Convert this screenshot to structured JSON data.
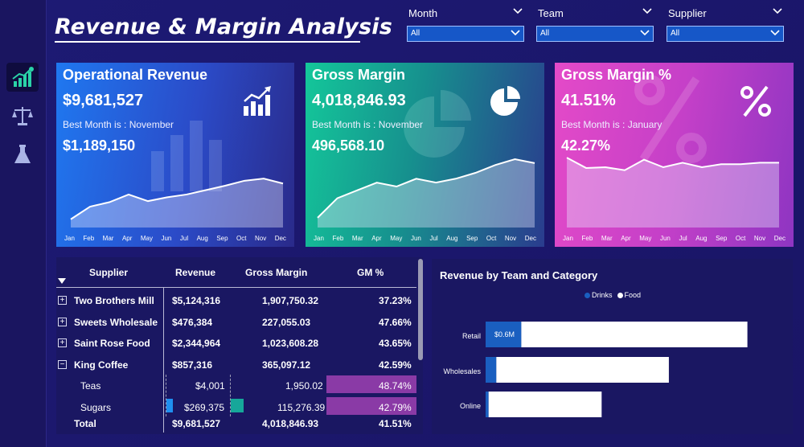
{
  "title": "Revenue & Margin Analysis",
  "slicers": [
    {
      "label": "Month",
      "value": "All"
    },
    {
      "label": "Team",
      "value": "All"
    },
    {
      "label": "Supplier",
      "value": "All"
    }
  ],
  "nav": [
    {
      "icon": "growth-chart-icon",
      "active": true
    },
    {
      "icon": "balance-scale-icon",
      "active": false
    },
    {
      "icon": "flask-icon",
      "active": false
    }
  ],
  "months": [
    "Jan",
    "Feb",
    "Mar",
    "Apr",
    "May",
    "Jun",
    "Jul",
    "Aug",
    "Sep",
    "Oct",
    "Nov",
    "Dec"
  ],
  "kpis": {
    "revenue": {
      "title": "Operational Revenue",
      "value": "$9,681,527",
      "best_label": "Best Month is : November",
      "best_value": "$1,189,150",
      "icon": "bar-chart-growth-icon"
    },
    "margin": {
      "title": "Gross Margin",
      "value": "4,018,846.93",
      "best_label": "Best Month is : November",
      "best_value": "496,568.10",
      "icon": "pie-chart-icon"
    },
    "margin_pct": {
      "title": "Gross Margin %",
      "value": "41.51%",
      "best_label": "Best Month is : January",
      "best_value": "42.27%",
      "icon": "percent-icon"
    }
  },
  "table": {
    "headers": [
      "Supplier",
      "Revenue",
      "Gross Margin",
      "GM %"
    ],
    "rows": [
      {
        "supplier": "Two Brothers Mill",
        "revenue": "$5,124,316",
        "margin": "1,907,750.32",
        "gm": "37.23%",
        "expander": "+"
      },
      {
        "supplier": "Sweets Wholesale",
        "revenue": "$476,384",
        "margin": "227,055.03",
        "gm": "47.66%",
        "expander": "+"
      },
      {
        "supplier": "Saint Rose Food",
        "revenue": "$2,344,964",
        "margin": "1,023,608.28",
        "gm": "43.65%",
        "expander": "+"
      },
      {
        "supplier": "King Coffee",
        "revenue": "$857,316",
        "margin": "365,097.12",
        "gm": "42.59%",
        "expander": "−"
      }
    ],
    "subrows": [
      {
        "supplier": "Teas",
        "revenue": "$4,001",
        "margin": "1,950.02",
        "gm": "48.74%"
      },
      {
        "supplier": "Sugars",
        "revenue": "$269,375",
        "margin": "115,276.39",
        "gm": "42.79%"
      }
    ],
    "total": {
      "supplier": "Total",
      "revenue": "$9,681,527",
      "margin": "4,018,846.93",
      "gm": "41.51%"
    }
  },
  "chart_data": [
    {
      "type": "area",
      "categories": [
        "Jan",
        "Feb",
        "Mar",
        "Apr",
        "May",
        "Jun",
        "Jul",
        "Aug",
        "Sep",
        "Oct",
        "Nov",
        "Dec"
      ],
      "series": [
        {
          "values": [
            0.45,
            0.68,
            0.76,
            0.9,
            0.78,
            0.85,
            0.9,
            0.98,
            1.06,
            1.15,
            1.19,
            1.1
          ]
        }
      ]
    },
    {
      "type": "area",
      "categories": [
        "Jan",
        "Feb",
        "Mar",
        "Apr",
        "May",
        "Jun",
        "Jul",
        "Aug",
        "Sep",
        "Oct",
        "Nov",
        "Dec"
      ],
      "series": [
        {
          "values": [
            0.2,
            0.3,
            0.34,
            0.38,
            0.36,
            0.4,
            0.38,
            0.4,
            0.43,
            0.47,
            0.5,
            0.48
          ]
        }
      ]
    },
    {
      "type": "area",
      "categories": [
        "Jan",
        "Feb",
        "Mar",
        "Apr",
        "May",
        "Jun",
        "Jul",
        "Aug",
        "Sep",
        "Oct",
        "Nov",
        "Dec"
      ],
      "series": [
        {
          "values": [
            42.27,
            40.9,
            41.0,
            40.6,
            42.0,
            41.0,
            41.6,
            41.0,
            41.4,
            41.4,
            41.6,
            41.6
          ]
        }
      ]
    },
    {
      "type": "bar",
      "title": "Revenue by Team and Category",
      "categories": [
        "Retail",
        "Wholesales",
        "Online"
      ],
      "series": [
        {
          "name": "Drinks",
          "values": [
            0.6,
            0.18,
            0.05
          ]
        },
        {
          "name": "Food",
          "values": [
            3.8,
            2.9,
            1.9
          ]
        }
      ],
      "data_labels": [
        "$0.6M",
        "",
        ""
      ],
      "legend": "top",
      "colors": {
        "Drinks": "#1a5fc0",
        "Food": "#ffffff"
      }
    }
  ]
}
